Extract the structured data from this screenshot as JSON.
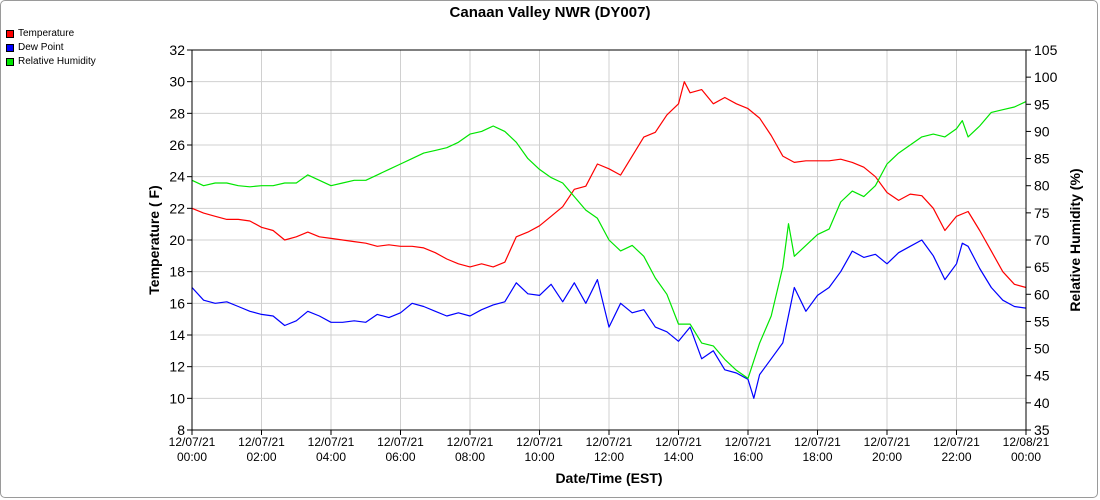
{
  "chart_data": {
    "type": "line",
    "title": "Canaan Valley NWR (DY007)",
    "xlabel": "Date/Time (EST)",
    "ylabel_left": "Temperature ( F)",
    "ylabel_right": "Relative Humidity (%)",
    "y_left_lim": [
      8,
      32
    ],
    "y_left_ticks": [
      "8",
      "10",
      "12",
      "14",
      "16",
      "18",
      "20",
      "22",
      "24",
      "26",
      "28",
      "30",
      "32"
    ],
    "y_right_lim": [
      35,
      105
    ],
    "y_right_ticks": [
      "35",
      "40",
      "45",
      "50",
      "55",
      "60",
      "65",
      "70",
      "75",
      "80",
      "85",
      "90",
      "95",
      "100",
      "105"
    ],
    "x_ticks": [
      {
        "date": "12/07/21",
        "time": "00:00"
      },
      {
        "date": "12/07/21",
        "time": "02:00"
      },
      {
        "date": "12/07/21",
        "time": "04:00"
      },
      {
        "date": "12/07/21",
        "time": "06:00"
      },
      {
        "date": "12/07/21",
        "time": "08:00"
      },
      {
        "date": "12/07/21",
        "time": "10:00"
      },
      {
        "date": "12/07/21",
        "time": "12:00"
      },
      {
        "date": "12/07/21",
        "time": "14:00"
      },
      {
        "date": "12/07/21",
        "time": "16:00"
      },
      {
        "date": "12/07/21",
        "time": "18:00"
      },
      {
        "date": "12/07/21",
        "time": "20:00"
      },
      {
        "date": "12/07/21",
        "time": "22:00"
      },
      {
        "date": "12/08/21",
        "time": "00:00"
      }
    ],
    "grid": true,
    "legend_position": "top-left",
    "series": [
      {
        "name": "Temperature",
        "axis": "left",
        "color": "#ff0000",
        "points": [
          [
            "12/07/21 00:00",
            22.0
          ],
          [
            "12/07/21 00:20",
            21.7
          ],
          [
            "12/07/21 00:40",
            21.5
          ],
          [
            "12/07/21 01:00",
            21.3
          ],
          [
            "12/07/21 01:20",
            21.3
          ],
          [
            "12/07/21 01:40",
            21.2
          ],
          [
            "12/07/21 02:00",
            20.8
          ],
          [
            "12/07/21 02:20",
            20.6
          ],
          [
            "12/07/21 02:40",
            20.0
          ],
          [
            "12/07/21 03:00",
            20.2
          ],
          [
            "12/07/21 03:20",
            20.5
          ],
          [
            "12/07/21 03:40",
            20.2
          ],
          [
            "12/07/21 04:00",
            20.1
          ],
          [
            "12/07/21 04:20",
            20.0
          ],
          [
            "12/07/21 04:40",
            19.9
          ],
          [
            "12/07/21 05:00",
            19.8
          ],
          [
            "12/07/21 05:20",
            19.6
          ],
          [
            "12/07/21 05:40",
            19.7
          ],
          [
            "12/07/21 06:00",
            19.6
          ],
          [
            "12/07/21 06:20",
            19.6
          ],
          [
            "12/07/21 06:40",
            19.5
          ],
          [
            "12/07/21 07:00",
            19.2
          ],
          [
            "12/07/21 07:20",
            18.8
          ],
          [
            "12/07/21 07:40",
            18.5
          ],
          [
            "12/07/21 08:00",
            18.3
          ],
          [
            "12/07/21 08:20",
            18.5
          ],
          [
            "12/07/21 08:40",
            18.3
          ],
          [
            "12/07/21 09:00",
            18.6
          ],
          [
            "12/07/21 09:20",
            20.2
          ],
          [
            "12/07/21 09:40",
            20.5
          ],
          [
            "12/07/21 10:00",
            20.9
          ],
          [
            "12/07/21 10:20",
            21.5
          ],
          [
            "12/07/21 10:40",
            22.1
          ],
          [
            "12/07/21 11:00",
            23.2
          ],
          [
            "12/07/21 11:20",
            23.4
          ],
          [
            "12/07/21 11:40",
            24.8
          ],
          [
            "12/07/21 12:00",
            24.5
          ],
          [
            "12/07/21 12:20",
            24.1
          ],
          [
            "12/07/21 12:40",
            25.3
          ],
          [
            "12/07/21 13:00",
            26.5
          ],
          [
            "12/07/21 13:20",
            26.8
          ],
          [
            "12/07/21 13:40",
            27.9
          ],
          [
            "12/07/21 14:00",
            28.6
          ],
          [
            "12/07/21 14:10",
            30.0
          ],
          [
            "12/07/21 14:20",
            29.3
          ],
          [
            "12/07/21 14:40",
            29.5
          ],
          [
            "12/07/21 15:00",
            28.6
          ],
          [
            "12/07/21 15:20",
            29.0
          ],
          [
            "12/07/21 15:40",
            28.6
          ],
          [
            "12/07/21 16:00",
            28.3
          ],
          [
            "12/07/21 16:20",
            27.7
          ],
          [
            "12/07/21 16:40",
            26.6
          ],
          [
            "12/07/21 17:00",
            25.3
          ],
          [
            "12/07/21 17:20",
            24.9
          ],
          [
            "12/07/21 17:40",
            25.0
          ],
          [
            "12/07/21 18:00",
            25.0
          ],
          [
            "12/07/21 18:20",
            25.0
          ],
          [
            "12/07/21 18:40",
            25.1
          ],
          [
            "12/07/21 19:00",
            24.9
          ],
          [
            "12/07/21 19:20",
            24.6
          ],
          [
            "12/07/21 19:40",
            24.0
          ],
          [
            "12/07/21 20:00",
            23.0
          ],
          [
            "12/07/21 20:20",
            22.5
          ],
          [
            "12/07/21 20:40",
            22.9
          ],
          [
            "12/07/21 21:00",
            22.8
          ],
          [
            "12/07/21 21:20",
            22.0
          ],
          [
            "12/07/21 21:40",
            20.6
          ],
          [
            "12/07/21 22:00",
            21.5
          ],
          [
            "12/07/21 22:20",
            21.8
          ],
          [
            "12/07/21 22:40",
            20.6
          ],
          [
            "12/07/21 23:00",
            19.3
          ],
          [
            "12/07/21 23:20",
            18.0
          ],
          [
            "12/07/21 23:40",
            17.2
          ],
          [
            "12/08/21 00:00",
            17.0
          ]
        ]
      },
      {
        "name": "Dew Point",
        "axis": "left",
        "color": "#0000ff",
        "points": [
          [
            "12/07/21 00:00",
            17.0
          ],
          [
            "12/07/21 00:20",
            16.2
          ],
          [
            "12/07/21 00:40",
            16.0
          ],
          [
            "12/07/21 01:00",
            16.1
          ],
          [
            "12/07/21 01:20",
            15.8
          ],
          [
            "12/07/21 01:40",
            15.5
          ],
          [
            "12/07/21 02:00",
            15.3
          ],
          [
            "12/07/21 02:20",
            15.2
          ],
          [
            "12/07/21 02:40",
            14.6
          ],
          [
            "12/07/21 03:00",
            14.9
          ],
          [
            "12/07/21 03:20",
            15.5
          ],
          [
            "12/07/21 03:40",
            15.2
          ],
          [
            "12/07/21 04:00",
            14.8
          ],
          [
            "12/07/21 04:20",
            14.8
          ],
          [
            "12/07/21 04:40",
            14.9
          ],
          [
            "12/07/21 05:00",
            14.8
          ],
          [
            "12/07/21 05:20",
            15.3
          ],
          [
            "12/07/21 05:40",
            15.1
          ],
          [
            "12/07/21 06:00",
            15.4
          ],
          [
            "12/07/21 06:20",
            16.0
          ],
          [
            "12/07/21 06:40",
            15.8
          ],
          [
            "12/07/21 07:00",
            15.5
          ],
          [
            "12/07/21 07:20",
            15.2
          ],
          [
            "12/07/21 07:40",
            15.4
          ],
          [
            "12/07/21 08:00",
            15.2
          ],
          [
            "12/07/21 08:20",
            15.6
          ],
          [
            "12/07/21 08:40",
            15.9
          ],
          [
            "12/07/21 09:00",
            16.1
          ],
          [
            "12/07/21 09:20",
            17.3
          ],
          [
            "12/07/21 09:40",
            16.6
          ],
          [
            "12/07/21 10:00",
            16.5
          ],
          [
            "12/07/21 10:20",
            17.2
          ],
          [
            "12/07/21 10:40",
            16.1
          ],
          [
            "12/07/21 11:00",
            17.3
          ],
          [
            "12/07/21 11:20",
            16.0
          ],
          [
            "12/07/21 11:40",
            17.5
          ],
          [
            "12/07/21 12:00",
            14.5
          ],
          [
            "12/07/21 12:20",
            16.0
          ],
          [
            "12/07/21 12:40",
            15.4
          ],
          [
            "12/07/21 13:00",
            15.6
          ],
          [
            "12/07/21 13:20",
            14.5
          ],
          [
            "12/07/21 13:40",
            14.2
          ],
          [
            "12/07/21 14:00",
            13.6
          ],
          [
            "12/07/21 14:20",
            14.5
          ],
          [
            "12/07/21 14:40",
            12.5
          ],
          [
            "12/07/21 15:00",
            13.0
          ],
          [
            "12/07/21 15:20",
            11.8
          ],
          [
            "12/07/21 15:40",
            11.6
          ],
          [
            "12/07/21 16:00",
            11.2
          ],
          [
            "12/07/21 16:10",
            10.0
          ],
          [
            "12/07/21 16:20",
            11.5
          ],
          [
            "12/07/21 16:40",
            12.5
          ],
          [
            "12/07/21 17:00",
            13.5
          ],
          [
            "12/07/21 17:20",
            17.0
          ],
          [
            "12/07/21 17:40",
            15.5
          ],
          [
            "12/07/21 18:00",
            16.5
          ],
          [
            "12/07/21 18:20",
            17.0
          ],
          [
            "12/07/21 18:40",
            18.0
          ],
          [
            "12/07/21 19:00",
            19.3
          ],
          [
            "12/07/21 19:20",
            18.9
          ],
          [
            "12/07/21 19:40",
            19.1
          ],
          [
            "12/07/21 20:00",
            18.5
          ],
          [
            "12/07/21 20:20",
            19.2
          ],
          [
            "12/07/21 20:40",
            19.6
          ],
          [
            "12/07/21 21:00",
            20.0
          ],
          [
            "12/07/21 21:20",
            19.0
          ],
          [
            "12/07/21 21:40",
            17.5
          ],
          [
            "12/07/21 22:00",
            18.5
          ],
          [
            "12/07/21 22:10",
            19.8
          ],
          [
            "12/07/21 22:20",
            19.6
          ],
          [
            "12/07/21 22:40",
            18.2
          ],
          [
            "12/07/21 23:00",
            17.0
          ],
          [
            "12/07/21 23:20",
            16.2
          ],
          [
            "12/07/21 23:40",
            15.8
          ],
          [
            "12/08/21 00:00",
            15.7
          ]
        ]
      },
      {
        "name": "Relative Humidity",
        "axis": "right",
        "color": "#00e600",
        "points": [
          [
            "12/07/21 00:00",
            81.0
          ],
          [
            "12/07/21 00:20",
            80.0
          ],
          [
            "12/07/21 00:40",
            80.5
          ],
          [
            "12/07/21 01:00",
            80.5
          ],
          [
            "12/07/21 01:20",
            80.0
          ],
          [
            "12/07/21 01:40",
            79.8
          ],
          [
            "12/07/21 02:00",
            80.0
          ],
          [
            "12/07/21 02:20",
            80.0
          ],
          [
            "12/07/21 02:40",
            80.5
          ],
          [
            "12/07/21 03:00",
            80.5
          ],
          [
            "12/07/21 03:20",
            82.0
          ],
          [
            "12/07/21 03:40",
            81.0
          ],
          [
            "12/07/21 04:00",
            80.0
          ],
          [
            "12/07/21 04:20",
            80.5
          ],
          [
            "12/07/21 04:40",
            81.0
          ],
          [
            "12/07/21 05:00",
            81.0
          ],
          [
            "12/07/21 05:20",
            82.0
          ],
          [
            "12/07/21 05:40",
            83.0
          ],
          [
            "12/07/21 06:00",
            84.0
          ],
          [
            "12/07/21 06:20",
            85.0
          ],
          [
            "12/07/21 06:40",
            86.0
          ],
          [
            "12/07/21 07:00",
            86.5
          ],
          [
            "12/07/21 07:20",
            87.0
          ],
          [
            "12/07/21 07:40",
            88.0
          ],
          [
            "12/07/21 08:00",
            89.5
          ],
          [
            "12/07/21 08:20",
            90.0
          ],
          [
            "12/07/21 08:40",
            91.0
          ],
          [
            "12/07/21 09:00",
            90.0
          ],
          [
            "12/07/21 09:20",
            88.0
          ],
          [
            "12/07/21 09:40",
            85.0
          ],
          [
            "12/07/21 10:00",
            83.0
          ],
          [
            "12/07/21 10:20",
            81.5
          ],
          [
            "12/07/21 10:40",
            80.5
          ],
          [
            "12/07/21 11:00",
            78.0
          ],
          [
            "12/07/21 11:20",
            75.5
          ],
          [
            "12/07/21 11:40",
            74.0
          ],
          [
            "12/07/21 12:00",
            70.0
          ],
          [
            "12/07/21 12:20",
            68.0
          ],
          [
            "12/07/21 12:40",
            69.0
          ],
          [
            "12/07/21 13:00",
            67.0
          ],
          [
            "12/07/21 13:20",
            63.0
          ],
          [
            "12/07/21 13:40",
            60.0
          ],
          [
            "12/07/21 14:00",
            54.5
          ],
          [
            "12/07/21 14:20",
            54.5
          ],
          [
            "12/07/21 14:40",
            51.0
          ],
          [
            "12/07/21 15:00",
            50.5
          ],
          [
            "12/07/21 15:20",
            48.0
          ],
          [
            "12/07/21 15:40",
            46.0
          ],
          [
            "12/07/21 16:00",
            44.5
          ],
          [
            "12/07/21 16:20",
            51.0
          ],
          [
            "12/07/21 16:40",
            56.0
          ],
          [
            "12/07/21 17:00",
            65.0
          ],
          [
            "12/07/21 17:10",
            73.0
          ],
          [
            "12/07/21 17:20",
            67.0
          ],
          [
            "12/07/21 17:40",
            69.0
          ],
          [
            "12/07/21 18:00",
            71.0
          ],
          [
            "12/07/21 18:20",
            72.0
          ],
          [
            "12/07/21 18:40",
            77.0
          ],
          [
            "12/07/21 19:00",
            79.0
          ],
          [
            "12/07/21 19:20",
            78.0
          ],
          [
            "12/07/21 19:40",
            80.0
          ],
          [
            "12/07/21 20:00",
            84.0
          ],
          [
            "12/07/21 20:20",
            86.0
          ],
          [
            "12/07/21 20:40",
            87.5
          ],
          [
            "12/07/21 21:00",
            89.0
          ],
          [
            "12/07/21 21:20",
            89.5
          ],
          [
            "12/07/21 21:40",
            89.0
          ],
          [
            "12/07/21 22:00",
            90.5
          ],
          [
            "12/07/21 22:10",
            92.0
          ],
          [
            "12/07/21 22:20",
            89.0
          ],
          [
            "12/07/21 22:40",
            91.0
          ],
          [
            "12/07/21 23:00",
            93.5
          ],
          [
            "12/07/21 23:20",
            94.0
          ],
          [
            "12/07/21 23:40",
            94.5
          ],
          [
            "12/08/21 00:00",
            95.5
          ]
        ]
      }
    ]
  }
}
